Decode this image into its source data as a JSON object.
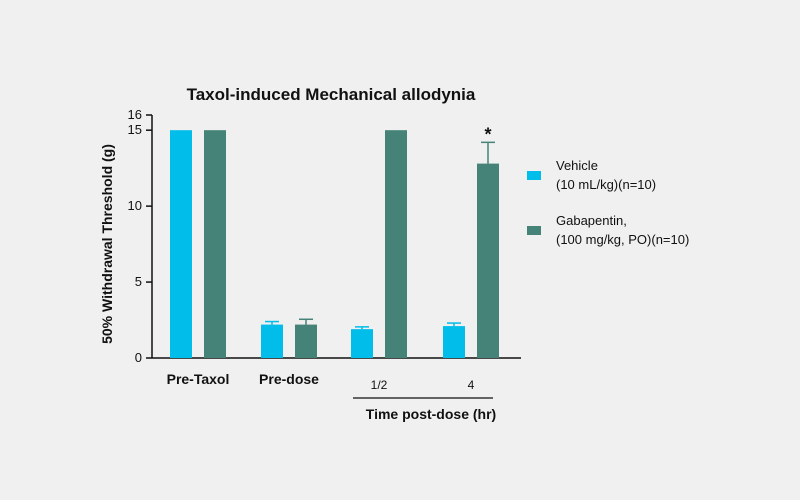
{
  "chart_data": {
    "type": "bar",
    "title": "Taxol-induced Mechanical allodynia",
    "ylabel": "50% Withdrawal Threshold (g)",
    "xlabel": "Time post-dose (hr)",
    "ylim": [
      0,
      16
    ],
    "yticks": [
      0,
      5,
      10,
      15,
      16
    ],
    "categories": [
      "Pre-Taxol",
      "Pre-dose",
      "1/2",
      "4"
    ],
    "bold_categories": [
      "Pre-Taxol",
      "Pre-dose"
    ],
    "series": [
      {
        "name": "Vehicle\n(10 mL/kg)(n=10)",
        "name_lines": [
          "Vehicle",
          "(10 mL/kg)(n=10)"
        ],
        "color": "#00bde9",
        "values": [
          15,
          2.2,
          1.9,
          2.1
        ],
        "errors": [
          0,
          0.2,
          0.15,
          0.2
        ]
      },
      {
        "name": "Gabapentin,\n(100 mg/kg, PO)(n=10)",
        "name_lines": [
          "Gabapentin,",
          "(100 mg/kg, PO)(n=10)"
        ],
        "color": "#458277",
        "values": [
          15,
          2.2,
          15,
          12.8
        ],
        "errors": [
          0,
          0.35,
          0,
          1.4
        ]
      }
    ],
    "annotations": [
      {
        "text": "*",
        "category": "4",
        "series": 1
      }
    ],
    "grid": false,
    "legend_position": "right"
  }
}
